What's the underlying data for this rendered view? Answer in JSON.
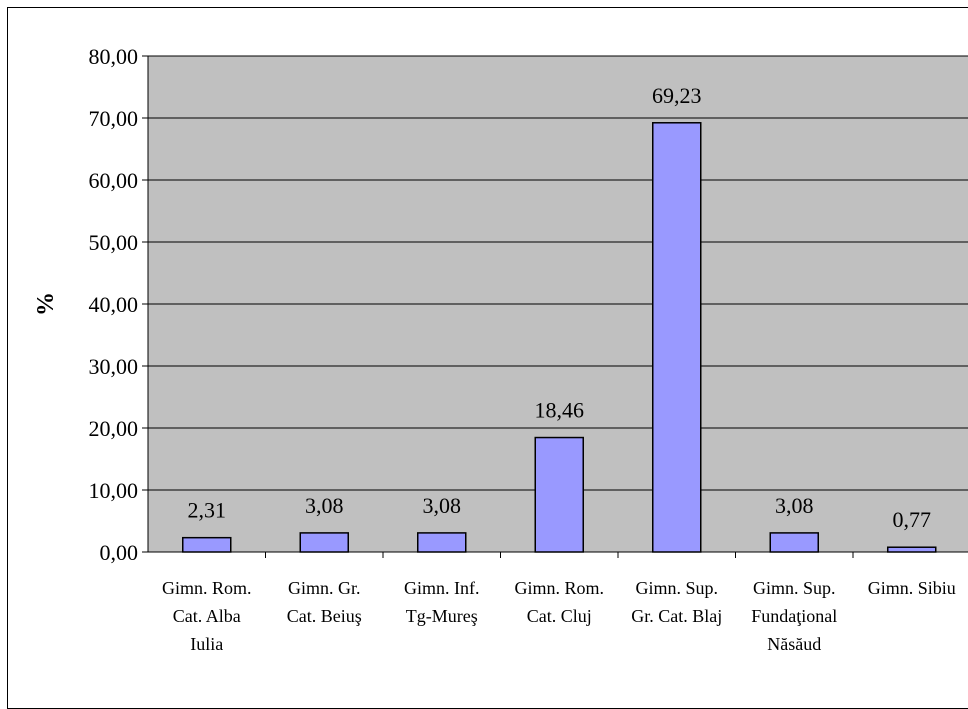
{
  "chart_data": {
    "type": "bar",
    "title": "",
    "xlabel": "",
    "ylabel": "%",
    "ylim": [
      0,
      80
    ],
    "yticks": [
      "0,00",
      "10,00",
      "20,00",
      "30,00",
      "40,00",
      "50,00",
      "60,00",
      "70,00",
      "80,00"
    ],
    "grid": true,
    "legend": "none",
    "categories": [
      [
        "Gimn. Rom.",
        "Cat. Alba",
        "Iulia"
      ],
      [
        "Gimn. Gr.",
        "Cat. Beiuş"
      ],
      [
        "Gimn. Inf.",
        "Tg-Mureş"
      ],
      [
        "Gimn. Rom.",
        "Cat. Cluj"
      ],
      [
        "Gimn. Sup.",
        "Gr. Cat. Blaj"
      ],
      [
        "Gimn. Sup.",
        "Fundaţional",
        "Năsăud"
      ],
      [
        "Gimn. Sibiu"
      ]
    ],
    "values": [
      2.31,
      3.08,
      3.08,
      18.46,
      69.23,
      3.08,
      0.77
    ],
    "value_labels": [
      "2,31",
      "3,08",
      "3,08",
      "18,46",
      "69,23",
      "3,08",
      "0,77"
    ],
    "colors": {
      "plot_background": "#c0c0c0",
      "bar_fill": "#9999ff",
      "bar_stroke": "#000000",
      "grid": "#000000"
    }
  }
}
